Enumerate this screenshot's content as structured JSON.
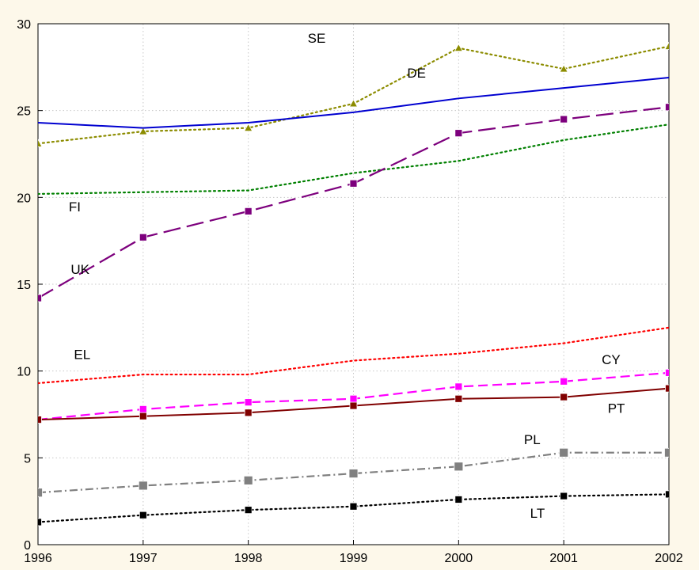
{
  "chart_data": {
    "type": "line",
    "title": "",
    "xlabel": "",
    "ylabel": "",
    "x": [
      1996,
      1997,
      1998,
      1999,
      2000,
      2001,
      2002
    ],
    "xlim": [
      1996,
      2002
    ],
    "ylim": [
      0,
      30
    ],
    "y_ticks": [
      "0",
      "5",
      "10",
      "15",
      "20",
      "25",
      "30"
    ],
    "x_ticks": [
      "1996",
      "1997",
      "1998",
      "1999",
      "2000",
      "2001",
      "2002"
    ],
    "grid": true,
    "legend": "none",
    "series": [
      {
        "name": "SE",
        "values": [
          23.1,
          23.8,
          24.0,
          25.4,
          28.6,
          27.4,
          28.7
        ],
        "color": "#8c8c00",
        "dash": "dot",
        "marker": "triangle"
      },
      {
        "name": "DE",
        "values": [
          24.3,
          24.0,
          24.3,
          24.9,
          25.7,
          26.3,
          26.9
        ],
        "color": "#0000d0",
        "dash": "solid",
        "marker": "none"
      },
      {
        "name": "FI",
        "values": [
          20.2,
          20.3,
          20.4,
          21.4,
          22.1,
          23.3,
          24.2
        ],
        "color": "#008000",
        "dash": "dot",
        "marker": "none"
      },
      {
        "name": "UK",
        "values": [
          14.2,
          17.7,
          19.2,
          20.8,
          23.7,
          24.5,
          25.2
        ],
        "color": "#7d007d",
        "dash": "longdash",
        "marker": "square"
      },
      {
        "name": "EL",
        "values": [
          9.3,
          9.8,
          9.8,
          10.6,
          11.0,
          11.6,
          12.5
        ],
        "color": "#ff0000",
        "dash": "dot",
        "marker": "none"
      },
      {
        "name": "CY",
        "values": [
          7.2,
          7.8,
          8.2,
          8.4,
          9.1,
          9.4,
          9.9
        ],
        "color": "#ff00ff",
        "dash": "dash",
        "marker": "square"
      },
      {
        "name": "PT",
        "values": [
          7.2,
          7.4,
          7.6,
          8.0,
          8.4,
          8.5,
          9.0
        ],
        "color": "#800000",
        "dash": "solid",
        "marker": "square"
      },
      {
        "name": "PL",
        "values": [
          3.0,
          3.4,
          3.7,
          4.1,
          4.5,
          5.3,
          5.3
        ],
        "color": "#808080",
        "dash": "dashdot",
        "marker": "square"
      },
      {
        "name": "LT",
        "values": [
          1.3,
          1.7,
          2.0,
          2.2,
          2.6,
          2.8,
          2.9
        ],
        "color": "#000000",
        "dash": "dot",
        "marker": "square"
      }
    ]
  }
}
